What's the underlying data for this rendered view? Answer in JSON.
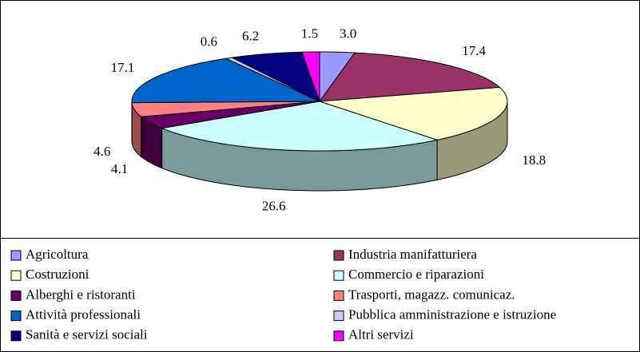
{
  "chart_data": {
    "type": "pie3d",
    "categories": [
      "Agricoltura",
      "Industria manifatturiera",
      "Costruzioni",
      "Commercio e riparazioni",
      "Alberghi e ristoranti",
      "Trasporti, magazz. comunicaz.",
      "Attività professionali",
      "Pubblica amministrazione e istruzione",
      "Sanità e servizi sociali",
      "Altri servizi"
    ],
    "values": [
      3.0,
      17.4,
      18.8,
      26.6,
      4.1,
      4.6,
      17.1,
      0.6,
      6.2,
      1.5
    ],
    "value_labels": [
      "3.0",
      "17.4",
      "18.8",
      "26.6",
      "4.1",
      "4.6",
      "17.1",
      "0.6",
      "6.2",
      "1.5"
    ],
    "colors": [
      "#9999ff",
      "#993366",
      "#ffffcc",
      "#ccffff",
      "#660066",
      "#ff8080",
      "#0066cc",
      "#ccccff",
      "#000080",
      "#ff00ff"
    ]
  }
}
